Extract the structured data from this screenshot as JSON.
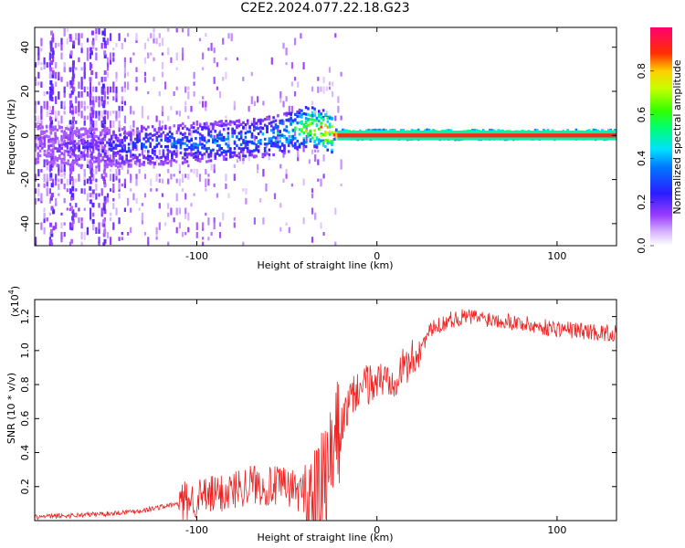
{
  "title": "C2E2.2024.077.22.18.G23",
  "chart_data": [
    {
      "type": "heatmap",
      "xlabel": "Height of straight line (km)",
      "ylabel": "Frequency (Hz)",
      "xlim": [
        -190,
        133
      ],
      "ylim": [
        -50,
        49
      ],
      "xticks": [
        -100,
        0,
        100
      ],
      "xtick_labels": [
        "-100",
        "0",
        "100"
      ],
      "yticks": [
        -40,
        -20,
        0,
        20,
        40
      ],
      "ytick_labels": [
        "-40",
        "-20",
        "0",
        "20",
        "40"
      ],
      "colorbar": {
        "label": "Normalized spectral amplitude",
        "range": [
          0,
          1
        ],
        "ticks": [
          0.0,
          0.2,
          0.4,
          0.6,
          0.8
        ],
        "tick_labels": [
          "0.0",
          "0.2",
          "0.4",
          "0.6",
          "0.8"
        ],
        "colormap": "rainbow (white-violet-blue-cyan-green-yellow-red-magenta)"
      },
      "ridge": {
        "x": [
          -190,
          -170,
          -150,
          -130,
          -110,
          -90,
          -70,
          -55,
          -45,
          -38,
          -30,
          -25,
          -20,
          -10,
          0,
          50,
          100,
          133
        ],
        "frequency": [
          -4,
          -6,
          -6,
          -5,
          -4,
          -3,
          -2,
          0,
          2,
          4,
          2,
          0,
          0,
          0,
          0,
          0,
          0,
          0
        ],
        "amplitude": [
          0.15,
          0.2,
          0.25,
          0.35,
          0.35,
          0.4,
          0.4,
          0.45,
          0.6,
          0.75,
          0.85,
          0.9,
          0.95,
          0.95,
          0.95,
          0.95,
          0.95,
          0.95
        ]
      },
      "grid": false
    },
    {
      "type": "line",
      "xlabel": "Height of straight line (km)",
      "ylabel": "SNR (10 * v/v)",
      "y_multiplier_label": "(x10",
      "y_multiplier_exp": "4",
      "xlim": [
        -190,
        133
      ],
      "ylim": [
        0,
        1.3
      ],
      "xticks": [
        -100,
        0,
        100
      ],
      "xtick_labels": [
        "-100",
        "0",
        "100"
      ],
      "yticks": [
        0.2,
        0.4,
        0.6,
        0.8,
        1.0,
        1.2
      ],
      "ytick_labels": [
        "0.2",
        "0.4",
        "0.6",
        "0.8",
        "1.0",
        "1.2"
      ],
      "series": [
        {
          "color": "#ee2222",
          "x": [
            -190,
            -170,
            -150,
            -130,
            -110,
            -100,
            -90,
            -80,
            -70,
            -60,
            -50,
            -40,
            -35,
            -30,
            -25,
            -20,
            -15,
            -10,
            -5,
            0,
            10,
            20,
            30,
            40,
            50,
            60,
            70,
            80,
            90,
            100,
            110,
            120,
            133
          ],
          "y": [
            0.02,
            0.03,
            0.04,
            0.06,
            0.1,
            0.13,
            0.15,
            0.18,
            0.22,
            0.2,
            0.2,
            0.16,
            0.1,
            0.18,
            0.35,
            0.55,
            0.7,
            0.78,
            0.8,
            0.82,
            0.85,
            0.95,
            1.12,
            1.18,
            1.2,
            1.19,
            1.18,
            1.16,
            1.14,
            1.13,
            1.12,
            1.11,
            1.1
          ]
        }
      ],
      "grid": false
    }
  ]
}
